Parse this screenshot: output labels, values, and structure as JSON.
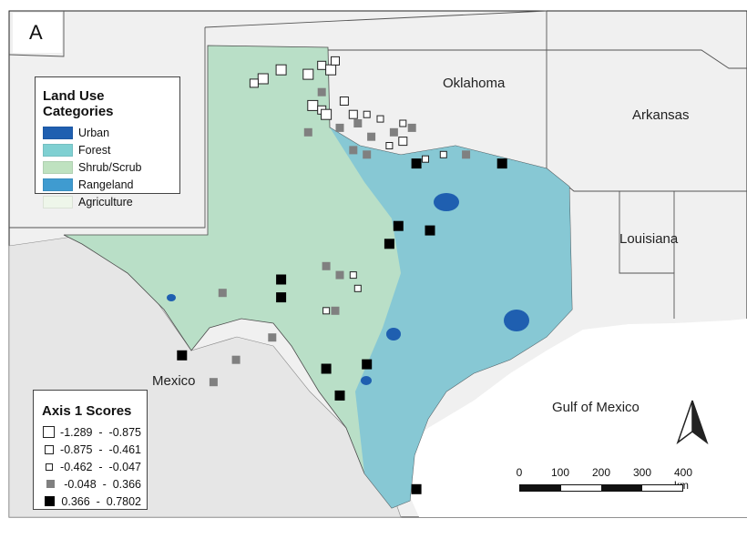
{
  "panel_letter": "A",
  "land_use_legend": {
    "title": "Land Use Categories",
    "items": [
      {
        "label": "Urban",
        "color": "#1f5fb0"
      },
      {
        "label": "Forest",
        "color": "#7fd0d2"
      },
      {
        "label": "Shrub/Scrub",
        "color": "#bfe2c0"
      },
      {
        "label": "Rangeland",
        "color": "#3f9bd0"
      },
      {
        "label": "Agriculture",
        "color": "#eef6ea"
      }
    ]
  },
  "axis_legend": {
    "title": "Axis 1 Scores",
    "classes": [
      {
        "low": "-1.289",
        "high": "-0.875",
        "fill": "#ffffff",
        "symbol": "large-hollow-square"
      },
      {
        "low": "-0.875",
        "high": "-0.461",
        "fill": "#ffffff",
        "symbol": "medium-hollow-square"
      },
      {
        "low": "-0.462",
        "high": "-0.047",
        "fill": "#ffffff",
        "symbol": "small-hollow-square"
      },
      {
        "low": "-0.048",
        "high": "0.366",
        "fill": "#808080",
        "symbol": "gray-square"
      },
      {
        "low": "0.366",
        "high": "0.7802",
        "fill": "#000000",
        "symbol": "black-square"
      }
    ]
  },
  "labels": {
    "oklahoma": "Oklahoma",
    "arkansas": "Arkansas",
    "louisiana": "Louisiana",
    "mexico": "Mexico",
    "gulf": "Gulf of Mexico"
  },
  "scale_bar": {
    "ticks": [
      "0",
      "100",
      "200",
      "300",
      "400 km"
    ]
  },
  "north_arrow_icon": "north-arrow-icon",
  "colors": {
    "texas_fill": "#b9dfc7",
    "east_texas_fill": "#7ec4d6",
    "surround_land": "#eeeeee",
    "water": "#ffffff"
  },
  "sites": [
    {
      "cls": 0,
      "lon": -102.3,
      "lat": 36.1
    },
    {
      "cls": 0,
      "lon": -101.9,
      "lat": 36.3
    },
    {
      "cls": 1,
      "lon": -102.5,
      "lat": 36.0
    },
    {
      "cls": 0,
      "lon": -101.3,
      "lat": 36.2
    },
    {
      "cls": 1,
      "lon": -101.0,
      "lat": 36.4
    },
    {
      "cls": 0,
      "lon": -100.8,
      "lat": 36.3
    },
    {
      "cls": 1,
      "lon": -100.7,
      "lat": 36.5
    },
    {
      "cls": 0,
      "lon": -101.2,
      "lat": 35.5
    },
    {
      "cls": 1,
      "lon": -101.0,
      "lat": 35.4
    },
    {
      "cls": 0,
      "lon": -100.9,
      "lat": 35.3
    },
    {
      "cls": 1,
      "lon": -100.5,
      "lat": 35.6
    },
    {
      "cls": 1,
      "lon": -100.3,
      "lat": 35.3
    },
    {
      "cls": 2,
      "lon": -100.0,
      "lat": 35.3
    },
    {
      "cls": 2,
      "lon": -99.7,
      "lat": 35.2
    },
    {
      "cls": 2,
      "lon": -99.2,
      "lat": 35.1
    },
    {
      "cls": 2,
      "lon": -99.5,
      "lat": 34.6
    },
    {
      "cls": 2,
      "lon": -98.7,
      "lat": 34.3
    },
    {
      "cls": 2,
      "lon": -98.3,
      "lat": 34.4
    },
    {
      "cls": 3,
      "lon": -101.0,
      "lat": 35.8
    },
    {
      "cls": 3,
      "lon": -100.6,
      "lat": 35.0
    },
    {
      "cls": 3,
      "lon": -100.2,
      "lat": 35.1
    },
    {
      "cls": 3,
      "lon": -99.9,
      "lat": 34.8
    },
    {
      "cls": 3,
      "lon": -100.0,
      "lat": 34.4
    },
    {
      "cls": 3,
      "lon": -99.4,
      "lat": 34.9
    },
    {
      "cls": 3,
      "lon": -100.3,
      "lat": 34.5
    },
    {
      "cls": 3,
      "lon": -101.3,
      "lat": 34.9
    },
    {
      "cls": 3,
      "lon": -99.0,
      "lat": 35.0
    },
    {
      "cls": 1,
      "lon": -99.2,
      "lat": 34.7
    },
    {
      "cls": 4,
      "lon": -98.9,
      "lat": 34.2
    },
    {
      "cls": 3,
      "lon": -97.8,
      "lat": 34.4
    },
    {
      "cls": 4,
      "lon": -97.0,
      "lat": 34.2
    },
    {
      "cls": 4,
      "lon": -99.3,
      "lat": 32.8
    },
    {
      "cls": 4,
      "lon": -98.6,
      "lat": 32.7
    },
    {
      "cls": 4,
      "lon": -99.5,
      "lat": 32.4
    },
    {
      "cls": 3,
      "lon": -100.9,
      "lat": 31.9
    },
    {
      "cls": 3,
      "lon": -100.6,
      "lat": 31.7
    },
    {
      "cls": 2,
      "lon": -100.3,
      "lat": 31.7
    },
    {
      "cls": 2,
      "lon": -100.2,
      "lat": 31.4
    },
    {
      "cls": 3,
      "lon": -100.7,
      "lat": 30.9
    },
    {
      "cls": 2,
      "lon": -100.9,
      "lat": 30.9
    },
    {
      "cls": 4,
      "lon": -101.9,
      "lat": 31.6
    },
    {
      "cls": 4,
      "lon": -101.9,
      "lat": 31.2
    },
    {
      "cls": 3,
      "lon": -103.2,
      "lat": 31.3
    },
    {
      "cls": 3,
      "lon": -102.1,
      "lat": 30.3
    },
    {
      "cls": 4,
      "lon": -104.1,
      "lat": 29.9
    },
    {
      "cls": 3,
      "lon": -102.9,
      "lat": 29.8
    },
    {
      "cls": 3,
      "lon": -103.4,
      "lat": 29.3
    },
    {
      "cls": 4,
      "lon": -100.9,
      "lat": 29.6
    },
    {
      "cls": 4,
      "lon": -100.0,
      "lat": 29.7
    },
    {
      "cls": 4,
      "lon": -100.6,
      "lat": 29.0
    },
    {
      "cls": 4,
      "lon": -98.9,
      "lat": 26.9
    }
  ]
}
